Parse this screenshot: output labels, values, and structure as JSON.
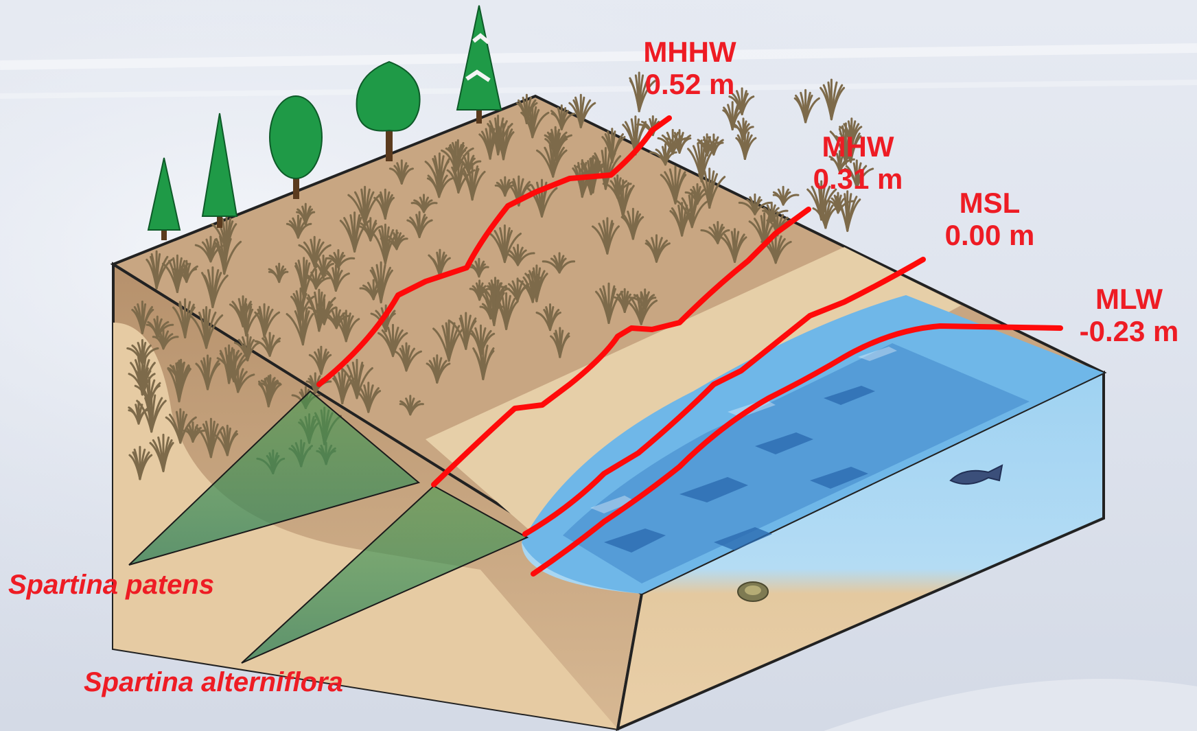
{
  "tidal_datums": [
    {
      "name": "MHHW",
      "elevation": "0.52 m"
    },
    {
      "name": "MHW",
      "elevation": "0.31 m"
    },
    {
      "name": "MSL",
      "elevation": "0.00 m"
    },
    {
      "name": "MLW",
      "elevation": "-0.23 m"
    }
  ],
  "species": [
    {
      "name": "Spartina patens"
    },
    {
      "name": "Spartina alterniflora"
    }
  ],
  "colors": {
    "label": "#ee1c24",
    "datum_line": "#ff0a0a",
    "sand": "#e8cfa6",
    "soil": "#c4a27e",
    "water": "#6fb7e8",
    "deep_water": "#2c6cb0",
    "tree": "#1f9a47",
    "grass": "#7d6a4a",
    "species_wedge": "#2f8f4a"
  },
  "icons": [
    "conifer-tree-icon",
    "deciduous-tree-icon",
    "fish-icon",
    "crab-icon"
  ]
}
